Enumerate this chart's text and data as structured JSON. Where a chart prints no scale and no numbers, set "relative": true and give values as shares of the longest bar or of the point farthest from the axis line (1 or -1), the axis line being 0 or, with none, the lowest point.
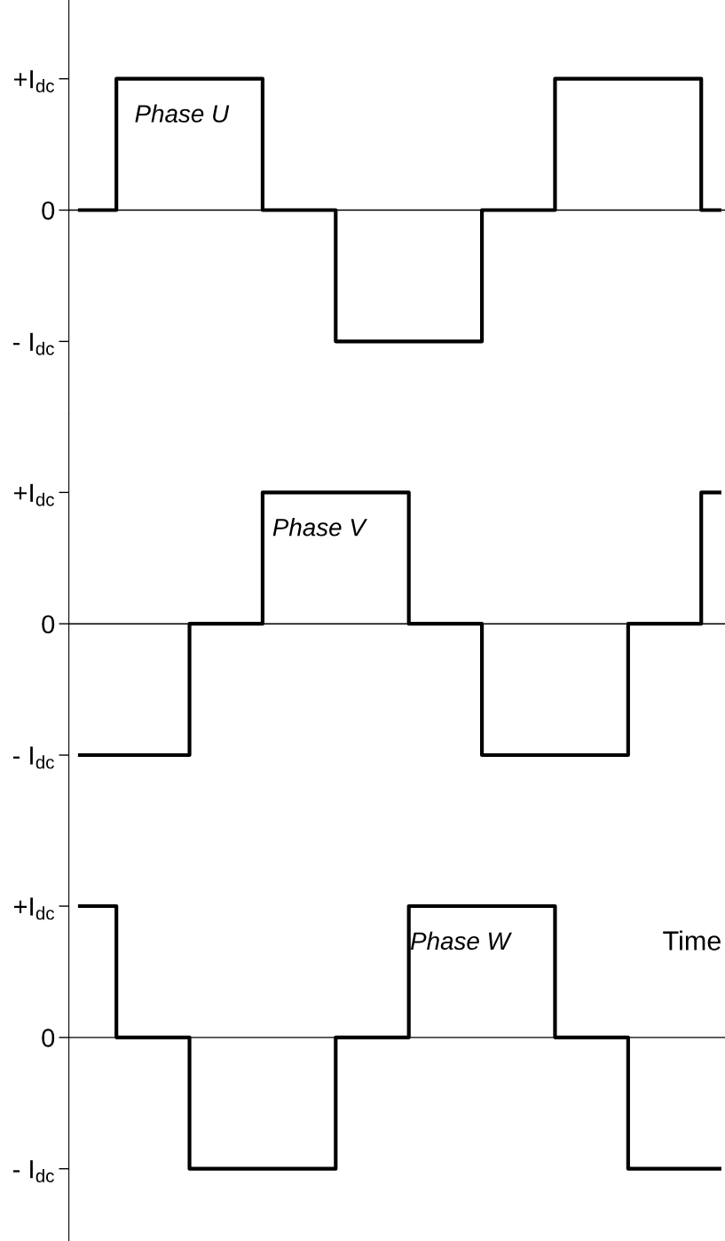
{
  "chart_data": [
    {
      "type": "step",
      "relative": true,
      "categories": [
        null,
        null,
        null,
        null,
        null,
        null,
        null,
        null,
        null,
        null,
        null,
        null,
        null,
        null,
        null,
        null,
        null,
        null,
        null,
        null,
        null,
        null,
        null,
        null,
        null,
        null,
        null,
        null,
        null,
        null,
        null,
        null,
        null,
        null,
        null,
        null
      ],
      "color": "#000000",
      "values": [
        0,
        0,
        1,
        1,
        1,
        1,
        1,
        1,
        1,
        1,
        0,
        0,
        0,
        0,
        -1,
        -1,
        -1,
        -1,
        -1,
        -1,
        -1,
        -1,
        0,
        0,
        0,
        0,
        1,
        1,
        1,
        1,
        1,
        1,
        1,
        1,
        0,
        0
      ],
      "tick_labels": "y",
      "annotations": [
        "+I$_{dc}$",
        "0",
        "- I$_{dc}$",
        "Phase U"
      ]
    },
    {
      "type": "step",
      "relative": true,
      "categories": [
        null,
        null,
        null,
        null,
        null,
        null,
        null,
        null,
        null,
        null,
        null,
        null,
        null,
        null,
        null,
        null,
        null,
        null,
        null,
        null,
        null,
        null,
        null,
        null,
        null,
        null,
        null,
        null,
        null,
        null,
        null,
        null,
        null,
        null,
        null,
        null
      ],
      "color": "#000000",
      "values": [
        -1,
        -1,
        -1,
        -1,
        -1,
        -1,
        0,
        0,
        0,
        0,
        1,
        1,
        1,
        1,
        1,
        1,
        1,
        1,
        0,
        0,
        0,
        0,
        -1,
        -1,
        -1,
        -1,
        -1,
        -1,
        -1,
        -1,
        0,
        0,
        0,
        0,
        1,
        1
      ],
      "tick_labels": "y",
      "annotations": [
        "+I$_{dc}$",
        "0",
        "- I$_{dc}$",
        "Phase V"
      ]
    },
    {
      "type": "step",
      "relative": true,
      "categories": [
        null,
        null,
        null,
        null,
        null,
        null,
        null,
        null,
        null,
        null,
        null,
        null,
        null,
        null,
        null,
        null,
        null,
        null,
        null,
        null,
        null,
        null,
        null,
        null,
        null,
        null,
        null,
        null,
        null,
        null,
        null,
        null,
        null,
        null,
        null,
        null
      ],
      "color": "#000000",
      "values": [
        1,
        1,
        0,
        0,
        0,
        0,
        -1,
        -1,
        -1,
        -1,
        -1,
        -1,
        -1,
        -1,
        0,
        0,
        0,
        0,
        1,
        1,
        1,
        1,
        1,
        1,
        1,
        1,
        0,
        0,
        0,
        0,
        -1,
        -1,
        -1,
        -1,
        -1,
        -1
      ],
      "tick_labels": "y",
      "xlabel": "Time",
      "annotations": [
        "+I$_{dc}$",
        "0",
        "- I$_{dc}$",
        "Phase W"
      ]
    }
  ]
}
